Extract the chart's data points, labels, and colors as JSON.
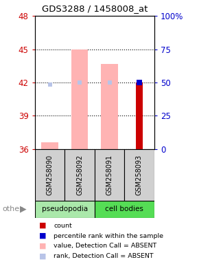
{
  "title": "GDS3288 / 1458008_at",
  "samples": [
    "GSM258090",
    "GSM258092",
    "GSM258091",
    "GSM258093"
  ],
  "ylim_left": [
    36,
    48
  ],
  "ylim_right": [
    0,
    100
  ],
  "yticks_left": [
    36,
    39,
    42,
    45,
    48
  ],
  "yticks_right": [
    0,
    25,
    50,
    75,
    100
  ],
  "ytick_labels_right": [
    "0",
    "25",
    "50",
    "75",
    "100%"
  ],
  "count_values": [
    null,
    null,
    null,
    42.0
  ],
  "percentile_values": [
    null,
    null,
    null,
    42.0
  ],
  "absent_value_bars": [
    36.6,
    45.0,
    43.7,
    null
  ],
  "absent_rank_bars": [
    41.8,
    42.0,
    42.0,
    null
  ],
  "absent_value_color": "#ffb3b3",
  "absent_rank_color": "#b8c4e8",
  "count_color": "#cc0000",
  "percentile_color": "#0000cc",
  "bar_width": 0.28,
  "plot_bg_color": "white",
  "left_tick_color": "#cc0000",
  "right_tick_color": "#0000cc",
  "sample_box_color": "#d0d0d0",
  "pseudopodia_color": "#aae8aa",
  "cell_bodies_color": "#55dd55",
  "legend_items": [
    {
      "color": "#cc0000",
      "label": "count"
    },
    {
      "color": "#0000cc",
      "label": "percentile rank within the sample"
    },
    {
      "color": "#ffb3b3",
      "label": "value, Detection Call = ABSENT"
    },
    {
      "color": "#b8c4e8",
      "label": "rank, Detection Call = ABSENT"
    }
  ]
}
